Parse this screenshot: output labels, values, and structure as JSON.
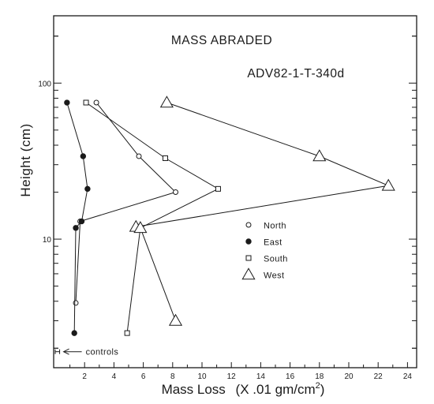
{
  "chart_data": {
    "type": "line",
    "title": "MASS ABRADED",
    "subtitle": "ADV82-1-T-340d",
    "xlabel": "Mass Loss",
    "xlabel_units": "(X .01 gm/cm",
    "xlabel_units_sup": "2",
    "xlabel_units_close": ")",
    "ylabel": "Height (cm)",
    "x_ticks": [
      "2",
      "4",
      "6",
      "8",
      "10",
      "12",
      "14",
      "16",
      "18",
      "20",
      "22",
      "24"
    ],
    "y_ticks": [
      "10",
      "100"
    ],
    "xlim": [
      0,
      25.5
    ],
    "ylim": [
      1.5,
      270
    ],
    "yscale": "log",
    "legend_position": "center-right",
    "colors": {
      "ink": "#1a1a1a",
      "background": "#ffffff"
    },
    "series": [
      {
        "name": "North",
        "marker": "open-circle",
        "points": [
          [
            2.8,
            75
          ],
          [
            5.7,
            34
          ],
          [
            8.2,
            20
          ],
          [
            1.7,
            13
          ],
          [
            1.4,
            3.9
          ]
        ]
      },
      {
        "name": "East",
        "marker": "filled-circle",
        "points": [
          [
            0.8,
            75
          ],
          [
            1.9,
            34
          ],
          [
            2.2,
            21
          ],
          [
            1.8,
            13
          ],
          [
            1.4,
            11.8
          ],
          [
            1.3,
            2.5
          ]
        ]
      },
      {
        "name": "South",
        "marker": "open-square",
        "points": [
          [
            2.1,
            75
          ],
          [
            7.5,
            33
          ],
          [
            11.1,
            21
          ],
          [
            5.8,
            11.8
          ],
          [
            4.9,
            2.5
          ]
        ]
      },
      {
        "name": "West",
        "marker": "open-triangle",
        "points": [
          [
            7.6,
            75
          ],
          [
            18.0,
            34
          ],
          [
            22.7,
            22
          ],
          [
            5.5,
            12
          ],
          [
            5.8,
            11.8
          ],
          [
            8.2,
            3
          ]
        ]
      }
    ],
    "annotations": [
      {
        "text": "controls",
        "x_range": [
          0,
          0.3
        ],
        "y": 1.9
      }
    ]
  }
}
